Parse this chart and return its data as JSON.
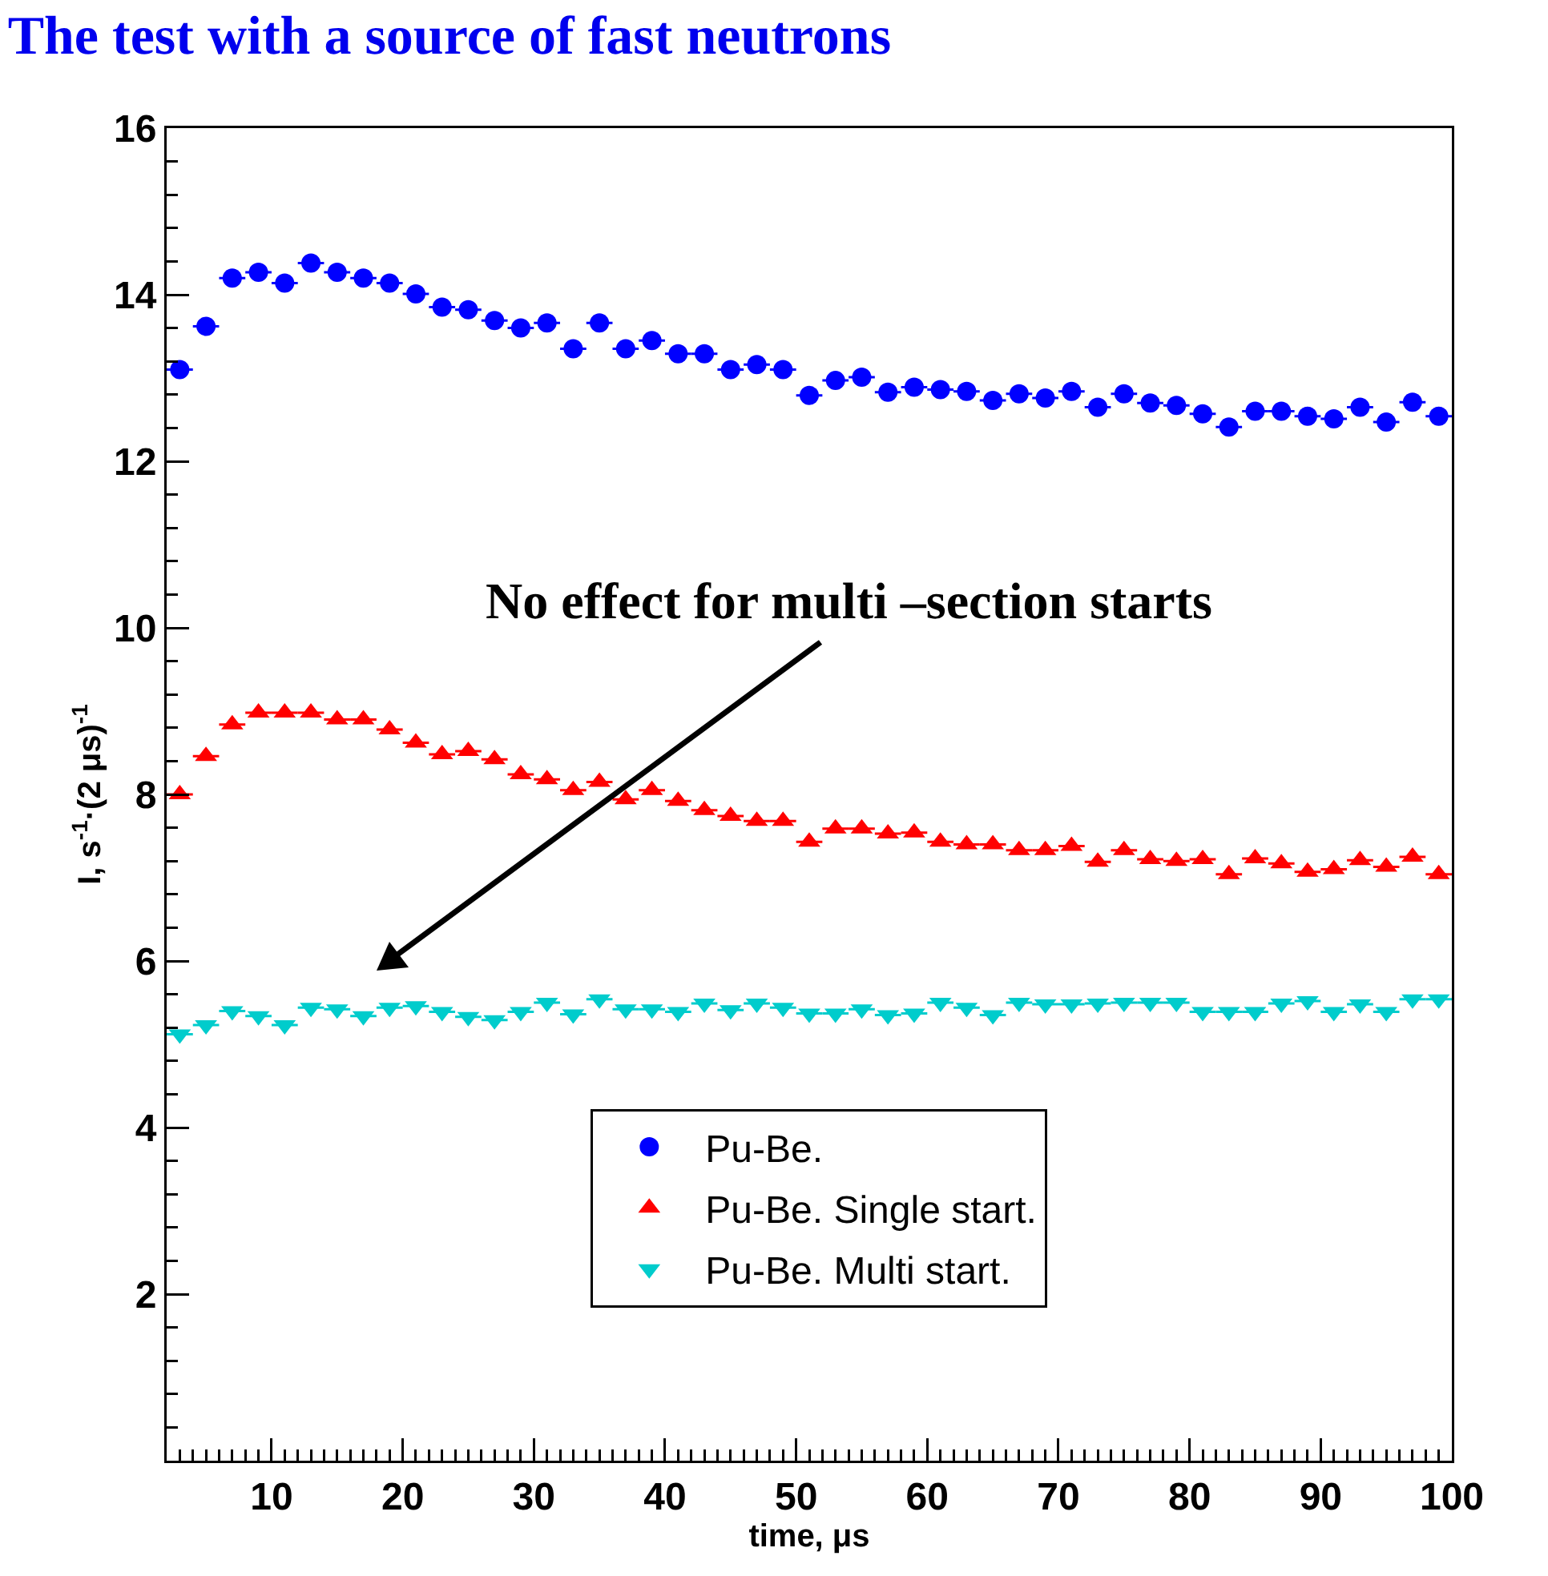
{
  "chart_data": {
    "type": "scatter",
    "title": "The test with a source of fast neutrons",
    "xlabel": "time, μs",
    "ylabel": "I, s$^{-1}$·(2 μs)$^{-1}$",
    "x": [
      3,
      5,
      7,
      9,
      11,
      13,
      15,
      17,
      19,
      21,
      23,
      25,
      27,
      29,
      31,
      33,
      35,
      37,
      39,
      41,
      43,
      45,
      47,
      49,
      51,
      53,
      55,
      57,
      59,
      61,
      63,
      65,
      67,
      69,
      71,
      73,
      75,
      77,
      79,
      81,
      83,
      85,
      87,
      89,
      91,
      93,
      95,
      97,
      99
    ],
    "series": [
      {
        "name": "Pu-Be.",
        "color": "#0000ff",
        "marker": "circle",
        "values": [
          13.1,
          13.62,
          14.2,
          14.27,
          14.14,
          14.38,
          14.27,
          14.2,
          14.14,
          14.01,
          13.85,
          13.82,
          13.69,
          13.6,
          13.66,
          13.35,
          13.66,
          13.35,
          13.45,
          13.29,
          13.29,
          13.1,
          13.16,
          13.1,
          12.79,
          12.97,
          13.01,
          12.83,
          12.89,
          12.86,
          12.84,
          12.73,
          12.81,
          12.76,
          12.84,
          12.65,
          12.81,
          12.7,
          12.67,
          12.57,
          12.41,
          12.6,
          12.6,
          12.54,
          12.51,
          12.65,
          12.47,
          12.71,
          12.54
        ],
        "xerrors": [
          1,
          1,
          1,
          1,
          1,
          1,
          1,
          1,
          1,
          1,
          1,
          1,
          1,
          1,
          1,
          1,
          1,
          1,
          1,
          1,
          1,
          1,
          1,
          1,
          1,
          1,
          1,
          1,
          1,
          1,
          1,
          1,
          1,
          1,
          1,
          1,
          1,
          1,
          1,
          1,
          1,
          1,
          1,
          1,
          1,
          1,
          1,
          1,
          1
        ]
      },
      {
        "name": "Pu-Be. Single start.",
        "color": "#ff0000",
        "marker": "triangle",
        "values": [
          8.0,
          8.46,
          8.84,
          8.98,
          8.98,
          8.98,
          8.9,
          8.9,
          8.78,
          8.62,
          8.48,
          8.52,
          8.42,
          8.24,
          8.18,
          8.05,
          8.15,
          7.94,
          8.05,
          7.92,
          7.81,
          7.74,
          7.68,
          7.68,
          7.43,
          7.59,
          7.59,
          7.53,
          7.54,
          7.43,
          7.4,
          7.4,
          7.33,
          7.33,
          7.38,
          7.19,
          7.33,
          7.22,
          7.2,
          7.22,
          7.04,
          7.23,
          7.17,
          7.07,
          7.1,
          7.21,
          7.13,
          7.25,
          7.04
        ],
        "xerrors": [
          1,
          1,
          1,
          1,
          1,
          1,
          1,
          1,
          1,
          1,
          1,
          1,
          1,
          1,
          1,
          1,
          1,
          1,
          1,
          1,
          1,
          1,
          1,
          1,
          1,
          1,
          1,
          1,
          1,
          1,
          1,
          1,
          1,
          1,
          1,
          1,
          1,
          1,
          1,
          1,
          1,
          1,
          1,
          1,
          1,
          1,
          1,
          1,
          1
        ]
      },
      {
        "name": "Pu-Be. Multi start.",
        "color": "#00cccc",
        "marker": "triangle-down",
        "values": [
          5.12,
          5.23,
          5.4,
          5.34,
          5.23,
          5.44,
          5.42,
          5.34,
          5.44,
          5.46,
          5.39,
          5.33,
          5.29,
          5.39,
          5.5,
          5.36,
          5.54,
          5.42,
          5.42,
          5.39,
          5.49,
          5.41,
          5.49,
          5.44,
          5.37,
          5.37,
          5.42,
          5.35,
          5.37,
          5.5,
          5.44,
          5.35,
          5.5,
          5.48,
          5.48,
          5.49,
          5.5,
          5.5,
          5.5,
          5.39,
          5.39,
          5.39,
          5.49,
          5.52,
          5.39,
          5.48,
          5.39,
          5.54,
          5.54
        ],
        "xerrors": [
          1,
          1,
          1,
          1,
          1,
          1,
          1,
          1,
          1,
          1,
          1,
          1,
          1,
          1,
          1,
          1,
          1,
          1,
          1,
          1,
          1,
          1,
          1,
          1,
          1,
          1,
          1,
          1,
          1,
          1,
          1,
          1,
          1,
          1,
          1,
          1,
          1,
          1,
          1,
          1,
          1,
          1,
          1,
          1,
          1,
          1,
          1,
          1,
          1
        ]
      }
    ],
    "xlim": [
      2,
      100
    ],
    "xticks": [
      10,
      20,
      30,
      40,
      50,
      60,
      70,
      80,
      90,
      100
    ],
    "ylim": [
      0,
      16
    ],
    "yticks": [
      2,
      4,
      6,
      8,
      10,
      12,
      14,
      16
    ],
    "grid": false,
    "legend": "bottom right",
    "annotations": [
      "No effect for multi –section starts"
    ]
  }
}
